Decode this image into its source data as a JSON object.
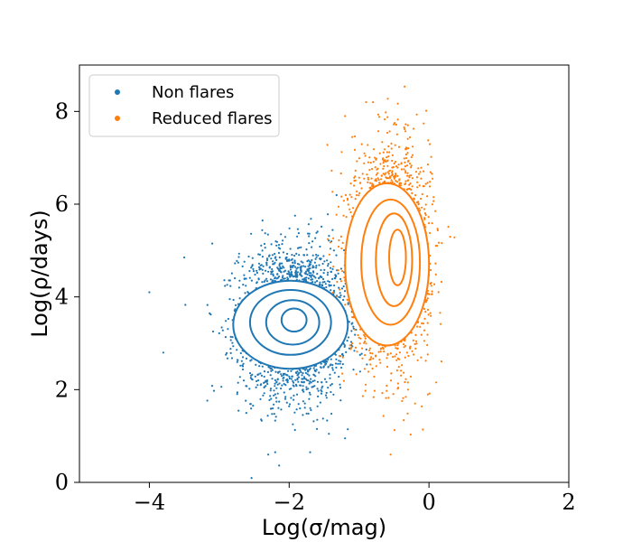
{
  "chart_data": {
    "type": "scatter",
    "xlabel": "Log(σ/mag)",
    "ylabel": "Log(ρ/days)",
    "xlim": [
      -5,
      2
    ],
    "ylim": [
      0,
      9
    ],
    "xticks": [
      -4,
      -2,
      0,
      2
    ],
    "yticks": [
      0,
      2,
      4,
      6,
      8
    ],
    "xtick_labels": [
      "−4",
      "−2",
      "0",
      "2"
    ],
    "ytick_labels": [
      "0",
      "2",
      "4",
      "6",
      "8"
    ],
    "grid": false,
    "legend_position": "top-left",
    "series": [
      {
        "name": "Non flares",
        "color": "#1f77b4",
        "distribution": {
          "x_center": -1.95,
          "x_spread": 0.38,
          "y_center": 3.45,
          "y_spread": 0.8,
          "count": 2600
        },
        "outliers": [
          [
            -4.0,
            4.1
          ],
          [
            -3.8,
            2.8
          ],
          [
            -3.5,
            4.85
          ],
          [
            -3.1,
            5.15
          ],
          [
            -2.3,
            0.6
          ],
          [
            -2.2,
            0.65
          ],
          [
            -1.7,
            0.65
          ],
          [
            -1.2,
            0.95
          ]
        ],
        "contours": [
          {
            "cx": -1.98,
            "cy": 3.4,
            "rx": 0.82,
            "ry": 0.95
          },
          {
            "cx": -1.98,
            "cy": 3.45,
            "rx": 0.58,
            "ry": 0.7
          },
          {
            "cx": -1.95,
            "cy": 3.45,
            "rx": 0.38,
            "ry": 0.48
          },
          {
            "cx": -1.93,
            "cy": 3.5,
            "rx": 0.18,
            "ry": 0.25
          }
        ]
      },
      {
        "name": "Reduced flares",
        "color": "#ff7f0e",
        "distribution": {
          "x_center": -0.55,
          "x_spread": 0.28,
          "y_center": 4.9,
          "y_spread": 1.1,
          "count": 2400
        },
        "outliers": [
          [
            -0.9,
            8.2
          ],
          [
            -1.2,
            7.9
          ],
          [
            -0.55,
            0.6
          ],
          [
            -0.2,
            1.7
          ],
          [
            -0.3,
            2.0
          ]
        ],
        "contours": [
          {
            "cx": -0.6,
            "cy": 4.7,
            "rx": 0.6,
            "ry": 1.75
          },
          {
            "cx": -0.55,
            "cy": 4.75,
            "rx": 0.42,
            "ry": 1.35
          },
          {
            "cx": -0.5,
            "cy": 4.8,
            "rx": 0.26,
            "ry": 1.0
          },
          {
            "cx": -0.45,
            "cy": 4.85,
            "rx": 0.12,
            "ry": 0.6
          }
        ]
      }
    ]
  }
}
